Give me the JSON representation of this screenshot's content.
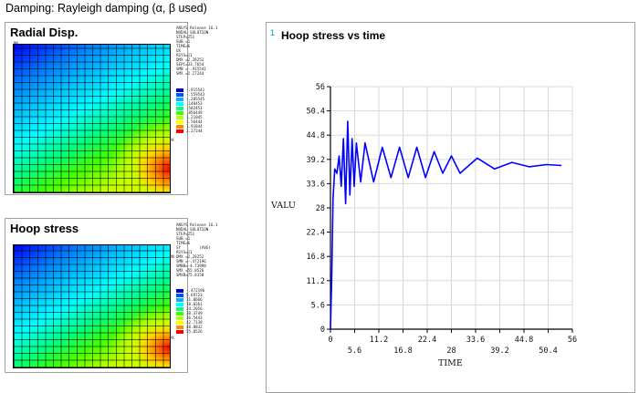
{
  "page": {
    "title": "Damping: Rayleigh damping  (α, β used)"
  },
  "radial": {
    "title": "Radial Disp.",
    "info": [
      "ANSYS Release 16.1",
      "NODAL SOLUTION",
      "STEP=251",
      "SUB =1",
      "TIME=6",
      "UX",
      "RSYS=11",
      "DMX =2.28252",
      "SEPC=33.7654",
      "SMN =-.915541",
      "SMX =2.27244"
    ],
    "legend_values": [
      "-.915541",
      "-.559543",
      "-.205545",
      ".148453",
      ".502451",
      ".856449",
      "1.21045",
      "1.56444",
      "1.91844",
      "2.27244"
    ],
    "corner_markers": {
      "top_left": "MN",
      "right": "MX"
    }
  },
  "hoop": {
    "title": "Hoop stress",
    "info": [
      "ANSYS Release 16.1",
      "NODAL SOLUTION",
      "STEP=251",
      "SUB =1",
      "TIME=6",
      "SY        (AVG)",
      "RSYS=11",
      "DMX =2.28252",
      "SMN =-.472196",
      "SMNB=-4.73998",
      "SMX =55.0526",
      "SMXB=75.8158"
    ],
    "legend_values": [
      "-.472196",
      "5.69723",
      "11.8666",
      "18.0361",
      "24.2056",
      "30.3749",
      "36.5443",
      "42.7138",
      "48.8832",
      "55.0526"
    ],
    "corner_markers": {
      "top_left": "MN",
      "right": "MX"
    }
  },
  "legend_colors": [
    "#0000c8",
    "#0050ff",
    "#00b4ff",
    "#00ffff",
    "#00ff80",
    "#3cff00",
    "#b4ff00",
    "#ffff00",
    "#ff8c00",
    "#ff0000"
  ],
  "chart": {
    "index_label": "1",
    "title": "Hoop stress vs time",
    "y_label": "VALU",
    "x_label": "TIME",
    "line_color": "#0000ff"
  },
  "chart_data": {
    "type": "line",
    "title": "Hoop stress vs time",
    "xlabel": "TIME",
    "ylabel": "VALU",
    "xlim": [
      0,
      56
    ],
    "ylim": [
      0,
      56
    ],
    "x_ticks_lower": [
      "0",
      "11.2",
      "22.4",
      "33.6",
      "44.8",
      "56"
    ],
    "x_ticks_upper": [
      "5.6",
      "16.8",
      "28",
      "39.2",
      "50.4"
    ],
    "y_ticks": [
      "0",
      "5.6",
      "11.2",
      "16.8",
      "22.4",
      "28",
      "33.6",
      "39.2",
      "44.8",
      "50.4",
      "56"
    ],
    "grid": true,
    "series": [
      {
        "x": [
          0,
          0.3,
          0.6,
          1,
          1.5,
          2,
          2.5,
          3,
          3.5,
          4,
          4.5,
          5,
          5.5,
          6,
          7,
          8,
          10,
          12,
          14,
          16,
          18,
          20,
          22,
          24,
          26,
          28,
          30,
          34,
          38,
          42,
          46,
          50,
          53.5
        ],
        "y": [
          0,
          12,
          30,
          37,
          36,
          40,
          33,
          44,
          29,
          48,
          31,
          44,
          33,
          43,
          34,
          43,
          34,
          42,
          35,
          42,
          35,
          42,
          35,
          41,
          36,
          40,
          36,
          39.5,
          37,
          38.5,
          37.5,
          38,
          37.8
        ]
      }
    ]
  }
}
